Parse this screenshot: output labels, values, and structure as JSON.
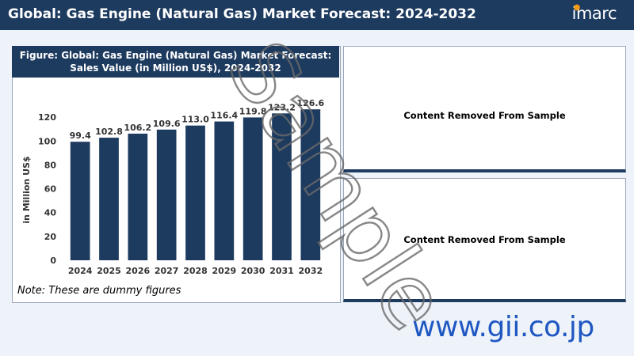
{
  "header": {
    "title": "Global: Gas Engine (Natural Gas) Market Forecast: 2024-2032",
    "logo": "imarc"
  },
  "figure": {
    "title_line1": "Figure: Global: Gas Engine (Natural Gas) Market Forecast:",
    "title_line2": "Sales Value (in Million US$), 2024-2032",
    "note": "Note: These are dummy figures"
  },
  "chart_data": {
    "type": "bar",
    "categories": [
      "2024",
      "2025",
      "2026",
      "2027",
      "2028",
      "2029",
      "2030",
      "2031",
      "2032"
    ],
    "values": [
      99.4,
      102.8,
      106.2,
      109.6,
      113.0,
      116.4,
      119.8,
      123.2,
      126.6
    ],
    "data_labels": [
      "99.4",
      "102.8",
      "106.2",
      "109.6",
      "113.0",
      "116.4",
      "119.8",
      "123.2",
      "126.6"
    ],
    "ylabel": "in Million US$",
    "ylim": [
      0,
      140
    ],
    "yticks": [
      0,
      20,
      40,
      60,
      80,
      100,
      120
    ],
    "bar_color": "#1d3a5f",
    "grid": false
  },
  "side_panels": [
    {
      "message": "Content Removed From Sample"
    },
    {
      "message": "Content Removed From Sample"
    }
  ],
  "watermark": "Sample",
  "site_url": "www.gii.co.jp",
  "colors": {
    "navy": "#1d3a5f",
    "panel_bg": "#eef3fa",
    "url_blue": "#1f57c2",
    "logo_accent": "#f39c12"
  }
}
